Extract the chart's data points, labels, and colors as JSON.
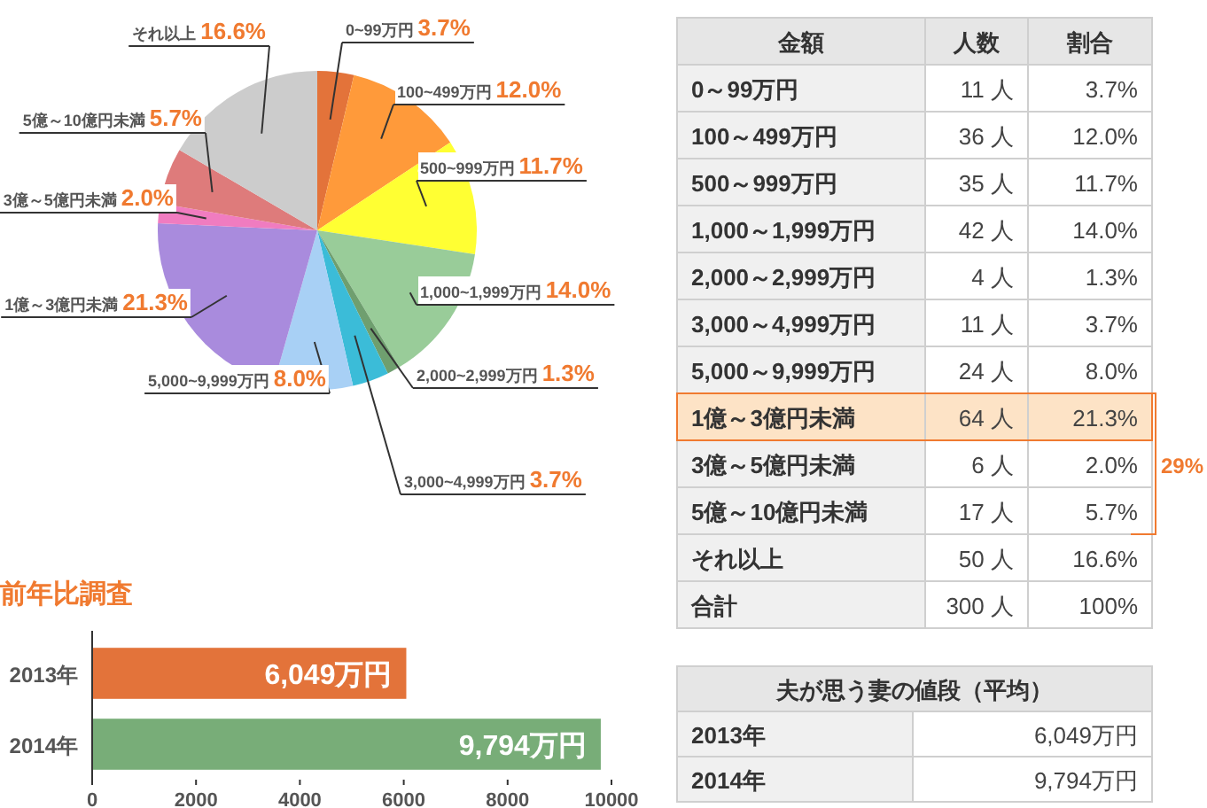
{
  "chart_data": [
    {
      "type": "pie",
      "categories": [
        "0~99万円",
        "100~499万円",
        "500~999万円",
        "1,000~1,999万円",
        "2,000~2,999万円",
        "3,000~4,999万円",
        "5,000~9,999万円",
        "1億～3億円未満",
        "3億～5億円未満",
        "5億～10億円未満",
        "それ以上"
      ],
      "values": [
        3.7,
        12.0,
        11.7,
        14.0,
        1.3,
        3.7,
        8.0,
        21.3,
        2.0,
        5.7,
        16.6
      ],
      "value_labels": [
        "3.7%",
        "12.0%",
        "11.7%",
        "14.0%",
        "1.3%",
        "3.7%",
        "8.0%",
        "21.3%",
        "2.0%",
        "5.7%",
        "16.6%"
      ],
      "colors": [
        "#e3733a",
        "#ff9a3a",
        "#ffff33",
        "#99cc99",
        "#6f9f6f",
        "#3bbcd8",
        "#a8d0f5",
        "#a98bdd",
        "#f07cc0",
        "#de7b7b",
        "#cccccc"
      ]
    },
    {
      "type": "bar",
      "orientation": "horizontal",
      "title": "前年比調査",
      "categories": [
        "2013年",
        "2014年"
      ],
      "values": [
        6049,
        9794
      ],
      "value_labels": [
        "6,049万円",
        "9,794万円"
      ],
      "colors": [
        "#e3733a",
        "#78ad78"
      ],
      "xlim": [
        0,
        10000
      ],
      "xticks": [
        0,
        2000,
        4000,
        6000,
        8000,
        10000
      ]
    },
    {
      "type": "other",
      "categories": [
        "金額",
        "人数",
        "割合"
      ],
      "y_categories": [
        "0～99万円",
        "100～499万円",
        "500～999万円",
        "1,000～1,999万円",
        "2,000～2,999万円",
        "3,000～4,999万円",
        "5,000～9,999万円",
        "1億～3億円未満",
        "3億～5億円未満",
        "5億～10億円未満",
        "それ以上",
        "合計"
      ],
      "cell_labels": [
        [
          "11 人",
          "3.7%"
        ],
        [
          "36 人",
          "12.0%"
        ],
        [
          "35 人",
          "11.7%"
        ],
        [
          "42 人",
          "14.0%"
        ],
        [
          "4 人",
          "1.3%"
        ],
        [
          "11 人",
          "3.7%"
        ],
        [
          "24 人",
          "8.0%"
        ],
        [
          "64 人",
          "21.3%"
        ],
        [
          "6 人",
          "2.0%"
        ],
        [
          "17 人",
          "5.7%"
        ],
        [
          "50 人",
          "16.6%"
        ],
        [
          "300 人",
          "100%"
        ]
      ],
      "annotations": [
        "29%"
      ]
    },
    {
      "type": "other",
      "title": "夫が思う妻の値段（平均）",
      "y_categories": [
        "2013年",
        "2014年"
      ],
      "cell_labels": [
        [
          "6,049万円"
        ],
        [
          "9,794万円"
        ]
      ]
    }
  ]
}
